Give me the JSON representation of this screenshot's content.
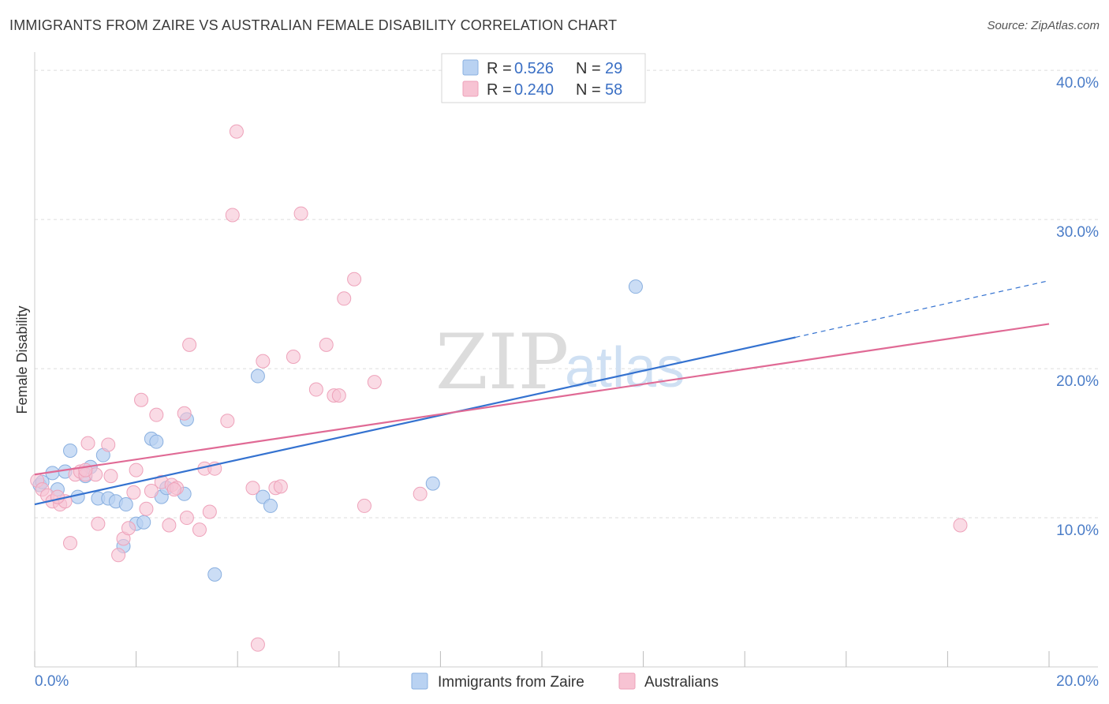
{
  "title": "IMMIGRANTS FROM ZAIRE VS AUSTRALIAN FEMALE DISABILITY CORRELATION CHART",
  "source": "Source: ZipAtlas.com",
  "watermark": {
    "zip": "ZIP",
    "atlas": "atlas"
  },
  "colors": {
    "blue_fill": "#b9d2f2",
    "blue_stroke": "#8ab0e0",
    "blue_line": "#3472d0",
    "pink_fill": "#f7c3d3",
    "pink_stroke": "#eea2ba",
    "pink_line": "#e06a95",
    "grid": "#dddddd",
    "tick_text": "#4a7cc7"
  },
  "legend": {
    "rows": [
      {
        "r_label": "R =",
        "r_value": "0.526",
        "n_label": "N =",
        "n_value": "29"
      },
      {
        "r_label": "R =",
        "r_value": "0.240",
        "n_label": "N =",
        "n_value": "58"
      }
    ]
  },
  "chart_data": {
    "type": "scatter",
    "title": "IMMIGRANTS FROM ZAIRE VS AUSTRALIAN FEMALE DISABILITY CORRELATION CHART",
    "xlabel": "",
    "ylabel": "Female Disability",
    "xlim": [
      0,
      20
    ],
    "ylim": [
      0,
      40
    ],
    "x_tick_labels": [
      "0.0%",
      "20.0%"
    ],
    "y_ticks": [
      10,
      20,
      30,
      40
    ],
    "y_tick_labels": [
      "10.0%",
      "20.0%",
      "30.0%",
      "40.0%"
    ],
    "grid": true,
    "legend_position": "top-center",
    "series": [
      {
        "name": "Immigrants from Zaire",
        "color": "#b9d2f2",
        "points": [
          [
            0.1,
            12.2
          ],
          [
            0.35,
            13.0
          ],
          [
            0.45,
            11.9
          ],
          [
            0.6,
            13.1
          ],
          [
            0.7,
            14.5
          ],
          [
            0.85,
            11.4
          ],
          [
            1.0,
            12.8
          ],
          [
            1.1,
            13.4
          ],
          [
            1.25,
            11.3
          ],
          [
            1.35,
            14.2
          ],
          [
            1.45,
            11.3
          ],
          [
            1.6,
            11.1
          ],
          [
            1.75,
            8.1
          ],
          [
            1.8,
            10.9
          ],
          [
            2.0,
            9.6
          ],
          [
            2.15,
            9.7
          ],
          [
            2.3,
            15.3
          ],
          [
            2.4,
            15.1
          ],
          [
            2.5,
            11.4
          ],
          [
            2.6,
            12.0
          ],
          [
            2.95,
            11.6
          ],
          [
            3.0,
            16.6
          ],
          [
            3.55,
            6.2
          ],
          [
            4.4,
            19.5
          ],
          [
            4.5,
            11.4
          ],
          [
            4.65,
            10.8
          ],
          [
            7.85,
            12.3
          ],
          [
            11.85,
            25.5
          ],
          [
            0.15,
            12.4
          ]
        ],
        "trend": {
          "x": [
            0,
            15.0
          ],
          "y": [
            10.9,
            22.1
          ],
          "dashed_to": [
            20.0,
            25.9
          ]
        }
      },
      {
        "name": "Australians",
        "color": "#f7c3d3",
        "points": [
          [
            0.05,
            12.5
          ],
          [
            0.15,
            11.9
          ],
          [
            0.25,
            11.5
          ],
          [
            0.35,
            11.1
          ],
          [
            0.5,
            10.9
          ],
          [
            0.6,
            11.1
          ],
          [
            0.7,
            8.3
          ],
          [
            0.8,
            12.9
          ],
          [
            0.9,
            13.1
          ],
          [
            1.0,
            12.9
          ],
          [
            1.05,
            15.0
          ],
          [
            1.2,
            12.9
          ],
          [
            1.25,
            9.6
          ],
          [
            1.45,
            14.9
          ],
          [
            1.5,
            12.8
          ],
          [
            1.65,
            7.5
          ],
          [
            1.75,
            8.6
          ],
          [
            1.85,
            9.3
          ],
          [
            1.95,
            11.7
          ],
          [
            2.0,
            13.2
          ],
          [
            2.1,
            17.9
          ],
          [
            2.2,
            10.6
          ],
          [
            2.3,
            11.8
          ],
          [
            2.4,
            16.9
          ],
          [
            2.5,
            12.4
          ],
          [
            2.65,
            9.5
          ],
          [
            2.7,
            12.2
          ],
          [
            2.8,
            12.0
          ],
          [
            2.95,
            17.0
          ],
          [
            3.0,
            10.0
          ],
          [
            3.05,
            21.6
          ],
          [
            3.25,
            9.2
          ],
          [
            3.35,
            13.3
          ],
          [
            3.45,
            10.4
          ],
          [
            3.55,
            13.3
          ],
          [
            3.8,
            16.5
          ],
          [
            3.9,
            30.3
          ],
          [
            3.98,
            35.9
          ],
          [
            4.3,
            12.0
          ],
          [
            4.4,
            1.5
          ],
          [
            4.5,
            20.5
          ],
          [
            4.75,
            12.0
          ],
          [
            4.85,
            12.1
          ],
          [
            5.1,
            20.8
          ],
          [
            5.25,
            30.4
          ],
          [
            5.55,
            18.6
          ],
          [
            5.75,
            21.6
          ],
          [
            5.9,
            18.2
          ],
          [
            6.0,
            18.2
          ],
          [
            6.1,
            24.7
          ],
          [
            6.3,
            26.0
          ],
          [
            6.5,
            10.8
          ],
          [
            6.7,
            19.1
          ],
          [
            7.6,
            11.6
          ],
          [
            18.25,
            9.5
          ],
          [
            0.45,
            11.4
          ],
          [
            1.0,
            13.2
          ],
          [
            2.75,
            11.9
          ]
        ],
        "trend": {
          "x": [
            0,
            20.0
          ],
          "y": [
            12.9,
            23.0
          ]
        }
      }
    ]
  }
}
